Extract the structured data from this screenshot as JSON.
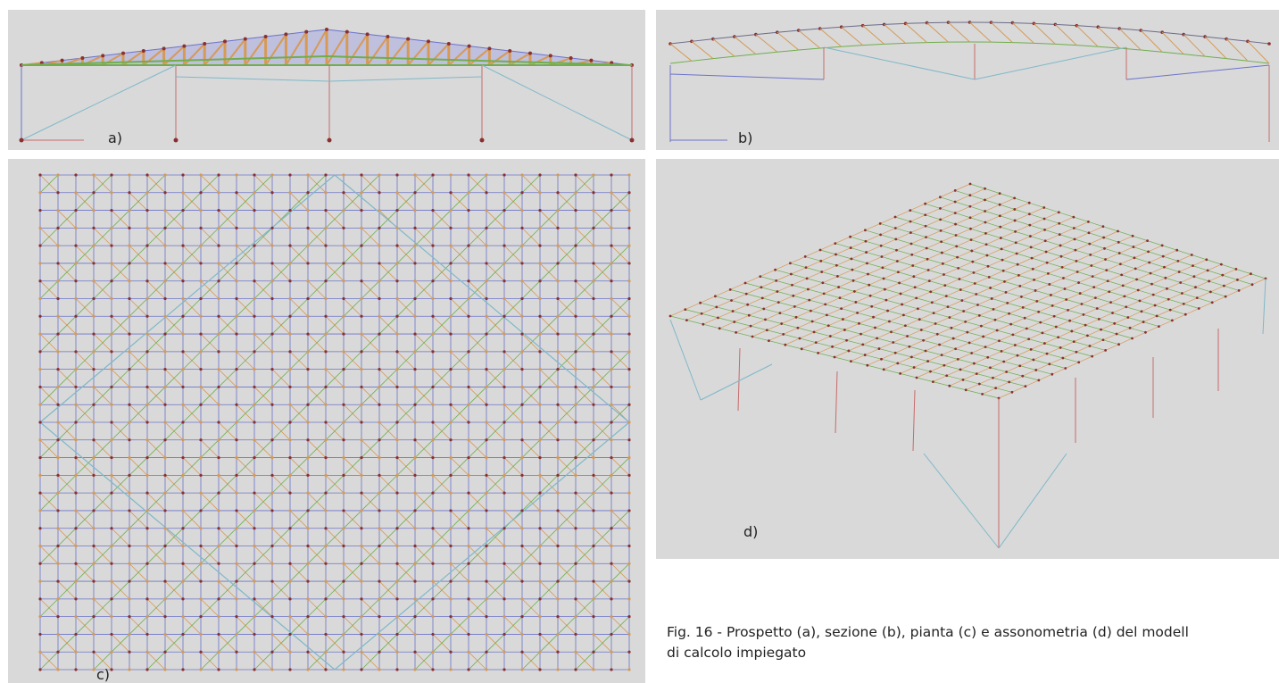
{
  "figure": {
    "panels": [
      {
        "id": "a",
        "label": "a)"
      },
      {
        "id": "b",
        "label": "b)"
      },
      {
        "id": "c",
        "label": "c)"
      },
      {
        "id": "d",
        "label": "d)"
      }
    ],
    "caption_lines": [
      "Fig. 16 - Prospetto (a), sezione (b), pianta (c) e assonometria (d) del modell",
      "di calcolo impiegato"
    ]
  },
  "colors": {
    "panel_bg": "#d9d9d9",
    "column": "#c86a6a",
    "brace": "#7fb8c8",
    "truss_orange": "#d79a55",
    "truss_green": "#6fae4c",
    "grid_blue": "#6b73c9",
    "node_red": "#8a3030",
    "roof_fill": "#b8b8de",
    "text": "#222222"
  }
}
